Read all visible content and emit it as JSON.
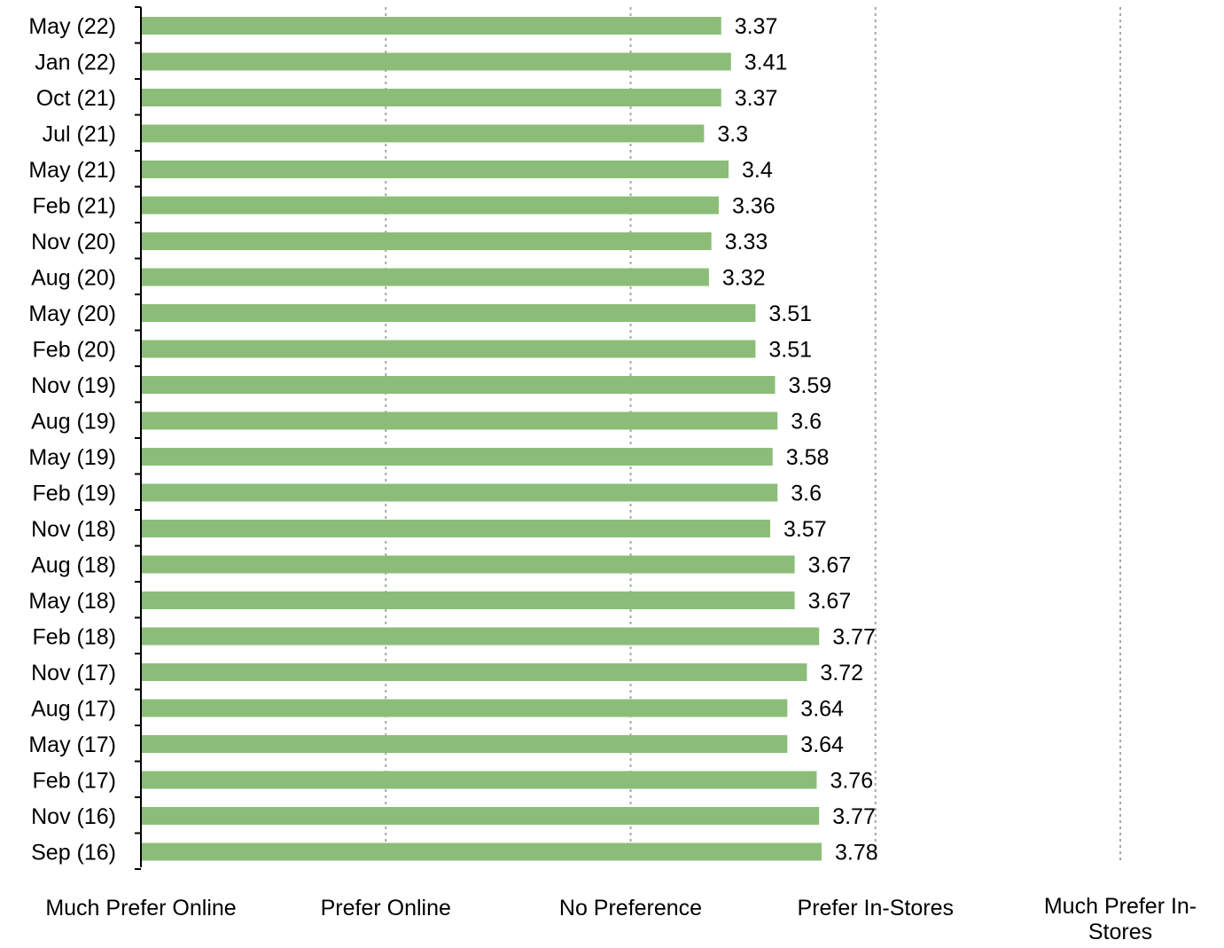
{
  "chart_data": {
    "type": "bar",
    "orientation": "horizontal",
    "categories": [
      "May (22)",
      "Jan (22)",
      "Oct (21)",
      "Jul (21)",
      "May (21)",
      "Feb (21)",
      "Nov (20)",
      "Aug (20)",
      "May (20)",
      "Feb (20)",
      "Nov (19)",
      "Aug (19)",
      "May (19)",
      "Feb (19)",
      "Nov (18)",
      "Aug (18)",
      "May (18)",
      "Feb (18)",
      "Nov (17)",
      "Aug (17)",
      "May (17)",
      "Feb (17)",
      "Nov (16)",
      "Sep (16)"
    ],
    "values": [
      3.37,
      3.41,
      3.37,
      3.3,
      3.4,
      3.36,
      3.33,
      3.32,
      3.51,
      3.51,
      3.59,
      3.6,
      3.58,
      3.6,
      3.57,
      3.67,
      3.67,
      3.77,
      3.72,
      3.64,
      3.64,
      3.76,
      3.77,
      3.78
    ],
    "data_labels": [
      "3.37",
      "3.41",
      "3.37",
      "3.3",
      "3.4",
      "3.36",
      "3.33",
      "3.32",
      "3.51",
      "3.51",
      "3.59",
      "3.6",
      "3.58",
      "3.6",
      "3.57",
      "3.67",
      "3.67",
      "3.77",
      "3.72",
      "3.64",
      "3.64",
      "3.76",
      "3.77",
      "3.78"
    ],
    "xlim": [
      1,
      5
    ],
    "x_ticks": [
      1,
      2,
      3,
      4,
      5
    ],
    "x_tick_labels": [
      "Much Prefer Online",
      "Prefer Online",
      "No Preference",
      "Prefer In-Stores",
      "Much Prefer In-Stores"
    ],
    "title": "",
    "xlabel": "",
    "ylabel": "",
    "grid": "vertical dashed",
    "legend": "none",
    "colors": {
      "bar": "#8cbd78",
      "grid": "#a6a6a6",
      "axis": "#000000",
      "text": "#000000"
    }
  }
}
